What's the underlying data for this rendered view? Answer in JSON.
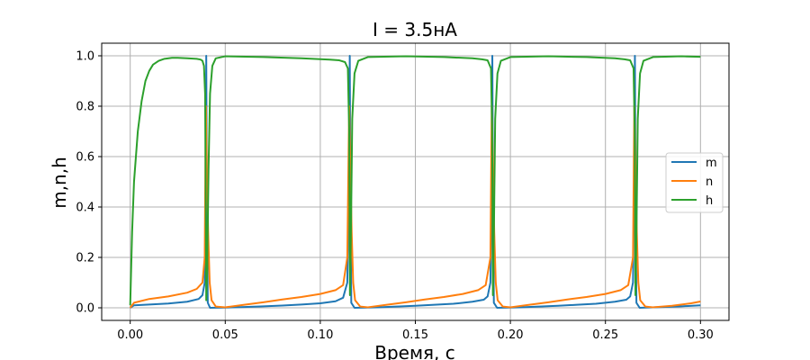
{
  "chart_data": {
    "type": "line",
    "title": "I = 3.5нА",
    "xlabel": "Время, с",
    "ylabel": "m,n,h",
    "xlim": [
      -0.015,
      0.315
    ],
    "ylim": [
      -0.05,
      1.05
    ],
    "xticks": [
      0.0,
      0.05,
      0.1,
      0.15,
      0.2,
      0.25,
      0.3
    ],
    "xtick_labels": [
      "0.00",
      "0.05",
      "0.10",
      "0.15",
      "0.20",
      "0.25",
      "0.30"
    ],
    "yticks": [
      0.0,
      0.2,
      0.4,
      0.6,
      0.8,
      1.0
    ],
    "ytick_labels": [
      "0.0",
      "0.2",
      "0.4",
      "0.6",
      "0.8",
      "1.0"
    ],
    "grid": true,
    "legend_position": "center-right",
    "series": [
      {
        "name": "m",
        "color": "#1f77b4",
        "x": [
          0.0,
          0.002,
          0.01,
          0.02,
          0.03,
          0.036,
          0.038,
          0.0392,
          0.0398,
          0.04,
          0.0403,
          0.0408,
          0.042,
          0.05,
          0.06,
          0.07,
          0.08,
          0.09,
          0.1,
          0.108,
          0.112,
          0.1142,
          0.1152,
          0.1155,
          0.1158,
          0.1163,
          0.118,
          0.13,
          0.14,
          0.15,
          0.16,
          0.17,
          0.18,
          0.186,
          0.188,
          0.1895,
          0.1902,
          0.1905,
          0.1908,
          0.1913,
          0.193,
          0.205,
          0.215,
          0.225,
          0.235,
          0.245,
          0.255,
          0.261,
          0.263,
          0.2645,
          0.2652,
          0.2655,
          0.2658,
          0.2663,
          0.268,
          0.28,
          0.29,
          0.3
        ],
        "y": [
          0.0,
          0.01,
          0.013,
          0.017,
          0.024,
          0.035,
          0.05,
          0.1,
          0.55,
          1.0,
          0.5,
          0.02,
          0.0,
          0.001,
          0.003,
          0.006,
          0.009,
          0.013,
          0.018,
          0.026,
          0.04,
          0.1,
          0.55,
          1.0,
          0.5,
          0.02,
          0.0,
          0.002,
          0.005,
          0.008,
          0.012,
          0.016,
          0.024,
          0.032,
          0.045,
          0.1,
          0.55,
          1.0,
          0.5,
          0.02,
          0.0,
          0.002,
          0.005,
          0.008,
          0.012,
          0.016,
          0.024,
          0.032,
          0.045,
          0.1,
          0.55,
          1.0,
          0.5,
          0.02,
          0.0,
          0.003,
          0.006,
          0.01
        ]
      },
      {
        "name": "n",
        "color": "#ff7f0e",
        "x": [
          0.0,
          0.002,
          0.01,
          0.02,
          0.03,
          0.035,
          0.038,
          0.0392,
          0.0398,
          0.0403,
          0.041,
          0.0418,
          0.0428,
          0.045,
          0.05,
          0.06,
          0.07,
          0.08,
          0.09,
          0.1,
          0.108,
          0.112,
          0.1142,
          0.1152,
          0.1158,
          0.1165,
          0.1173,
          0.1183,
          0.121,
          0.125,
          0.135,
          0.145,
          0.155,
          0.165,
          0.175,
          0.183,
          0.187,
          0.1895,
          0.1902,
          0.1908,
          0.1915,
          0.1923,
          0.1933,
          0.196,
          0.2,
          0.21,
          0.22,
          0.23,
          0.24,
          0.25,
          0.258,
          0.262,
          0.2645,
          0.2652,
          0.2658,
          0.2665,
          0.2673,
          0.2683,
          0.271,
          0.275,
          0.285,
          0.295,
          0.3
        ],
        "y": [
          0.0,
          0.02,
          0.035,
          0.045,
          0.06,
          0.075,
          0.1,
          0.2,
          0.8,
          0.55,
          0.3,
          0.1,
          0.03,
          0.005,
          0.002,
          0.012,
          0.022,
          0.033,
          0.043,
          0.055,
          0.07,
          0.09,
          0.2,
          0.8,
          0.55,
          0.3,
          0.1,
          0.03,
          0.005,
          0.002,
          0.012,
          0.022,
          0.033,
          0.043,
          0.055,
          0.07,
          0.09,
          0.2,
          0.8,
          0.55,
          0.3,
          0.1,
          0.03,
          0.005,
          0.002,
          0.012,
          0.022,
          0.033,
          0.043,
          0.055,
          0.07,
          0.09,
          0.2,
          0.8,
          0.55,
          0.3,
          0.1,
          0.03,
          0.005,
          0.002,
          0.008,
          0.018,
          0.025
        ]
      },
      {
        "name": "h",
        "color": "#2ca02c",
        "x": [
          0.0,
          0.001,
          0.002,
          0.004,
          0.006,
          0.008,
          0.01,
          0.012,
          0.015,
          0.018,
          0.022,
          0.025,
          0.03,
          0.035,
          0.037,
          0.038,
          0.0388,
          0.0394,
          0.0398,
          0.04,
          0.0405,
          0.0412,
          0.042,
          0.0432,
          0.045,
          0.05,
          0.07,
          0.09,
          0.105,
          0.11,
          0.113,
          0.1145,
          0.1152,
          0.1156,
          0.1162,
          0.1168,
          0.118,
          0.12,
          0.125,
          0.145,
          0.165,
          0.18,
          0.185,
          0.188,
          0.1898,
          0.1904,
          0.1908,
          0.1914,
          0.192,
          0.1932,
          0.195,
          0.2,
          0.22,
          0.24,
          0.255,
          0.26,
          0.263,
          0.2648,
          0.2654,
          0.2658,
          0.2664,
          0.267,
          0.2682,
          0.27,
          0.275,
          0.29,
          0.3
        ],
        "y": [
          0.01,
          0.3,
          0.5,
          0.7,
          0.82,
          0.9,
          0.94,
          0.965,
          0.98,
          0.988,
          0.992,
          0.992,
          0.99,
          0.988,
          0.985,
          0.98,
          0.96,
          0.85,
          0.35,
          0.03,
          0.15,
          0.55,
          0.85,
          0.96,
          0.99,
          0.998,
          0.995,
          0.99,
          0.985,
          0.982,
          0.975,
          0.95,
          0.7,
          0.05,
          0.35,
          0.75,
          0.93,
          0.98,
          0.995,
          0.998,
          0.995,
          0.99,
          0.986,
          0.982,
          0.95,
          0.7,
          0.05,
          0.35,
          0.75,
          0.93,
          0.98,
          0.995,
          0.998,
          0.995,
          0.99,
          0.986,
          0.982,
          0.95,
          0.7,
          0.05,
          0.35,
          0.75,
          0.93,
          0.98,
          0.995,
          0.998,
          0.996
        ]
      }
    ]
  }
}
